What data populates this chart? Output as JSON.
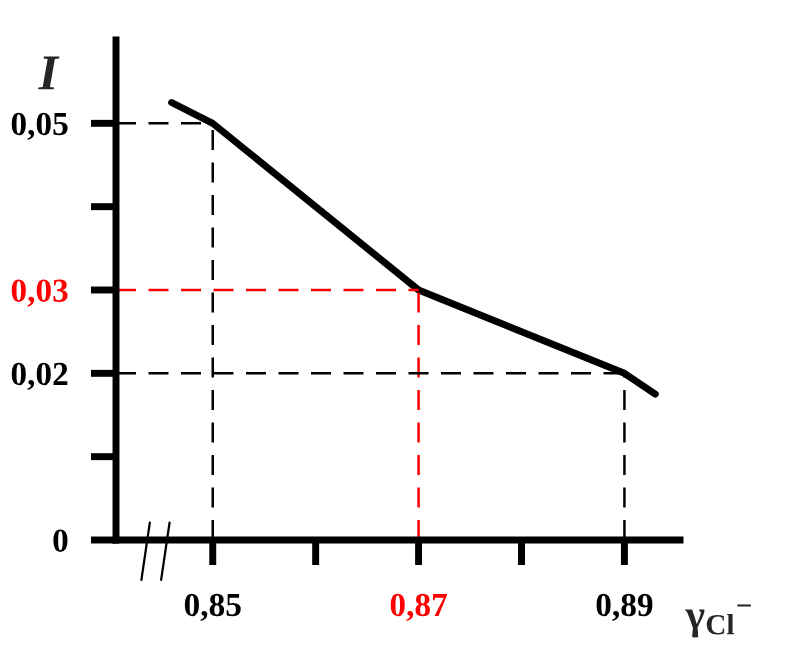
{
  "chart_data": {
    "type": "line",
    "xlabel": "γ$_{Cl}$$^{−}$",
    "ylabel": "I",
    "x": [
      0.846,
      0.85,
      0.87,
      0.89,
      0.893
    ],
    "series": [
      {
        "color": "#000000",
        "values": [
          0.0525,
          0.05,
          0.03,
          0.02,
          0.0175
        ]
      }
    ],
    "xlim": [
      0.8406,
      0.8954
    ],
    "ylim": [
      0,
      0.06
    ],
    "xticks": [
      {
        "value": 0.85,
        "label": "0,85"
      },
      {
        "value": 0.86,
        "label": null
      },
      {
        "value": 0.87,
        "label": "0,87"
      },
      {
        "value": 0.88,
        "label": null
      },
      {
        "value": 0.89,
        "label": "0,89"
      }
    ],
    "yticks": [
      0,
      {
        "value": 0.01,
        "label": null
      },
      {
        "value": 0.02,
        "label": "0,02"
      },
      {
        "value": 0.03,
        "label": "0,03"
      },
      {
        "value": 0.04,
        "label": null
      },
      {
        "value": 0.05,
        "label": "0,05"
      }
    ],
    "ref_lines": [
      {
        "axis": "x",
        "value": 0.85,
        "color": "#000000",
        "line_style": "dashed"
      },
      {
        "axis": "y",
        "value": 0.05,
        "color": "#000000",
        "line_style": "dashed"
      },
      {
        "axis": "x",
        "value": 0.87,
        "color": "#ff0000",
        "line_style": "dashed"
      },
      {
        "axis": "y",
        "value": 0.03,
        "color": "#ff0000",
        "line_style": "dashed"
      },
      {
        "axis": "x",
        "value": 0.89,
        "color": "#000000",
        "line_style": "dashed"
      },
      {
        "axis": "y",
        "value": 0.02,
        "color": "#000000",
        "line_style": "dashed"
      }
    ],
    "grid": false,
    "marker": "none",
    "line_style": "solid"
  }
}
